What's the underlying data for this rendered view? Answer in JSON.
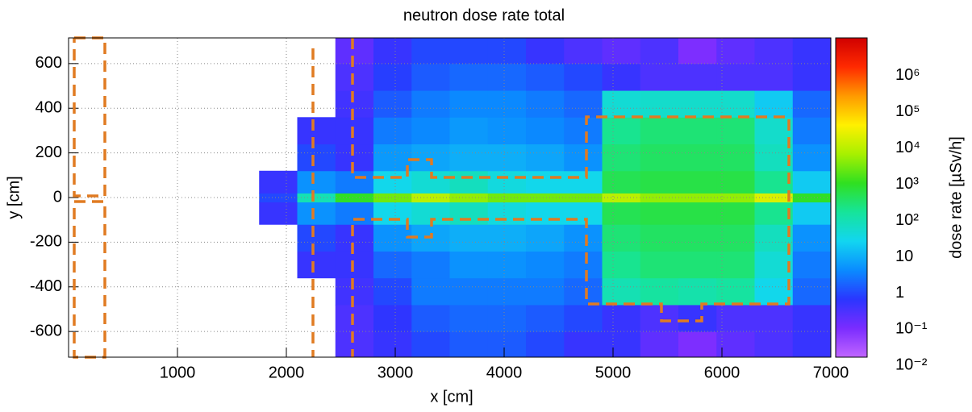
{
  "chart_data": {
    "type": "heatmap",
    "title": "neutron dose rate total",
    "x_label": "x [cm]",
    "y_label": "y [cm]",
    "colorbar_label": "dose rate [µSv/h]",
    "xlim": [
      0,
      7000
    ],
    "ylim": [
      -715,
      715
    ],
    "xticks": [
      1000,
      2000,
      3000,
      4000,
      5000,
      6000,
      7000
    ],
    "yticks": [
      -600,
      -400,
      -200,
      0,
      200,
      400,
      600
    ],
    "grid": true,
    "zscale": "log",
    "zlim": [
      0.017,
      11000000
    ],
    "zticks": [
      {
        "value": 0.01,
        "label": "10⁻²"
      },
      {
        "value": 0.1,
        "label": "10⁻¹"
      },
      1,
      10,
      {
        "value": 100,
        "label": "10²"
      },
      {
        "value": 1000,
        "label": "10³"
      },
      {
        "value": 10000,
        "label": "10⁴"
      },
      {
        "value": 100000,
        "label": "10⁵"
      },
      {
        "value": 1000000,
        "label": "10⁶"
      }
    ],
    "palette": [
      "#c065ff",
      "#7a2cff",
      "#2a36ff",
      "#0a8cff",
      "#12d6f0",
      "#16e49a",
      "#30e020",
      "#a8f000",
      "#fff000",
      "#ff9a00",
      "#ff2a00",
      "#d00000"
    ],
    "xbins": [
      0,
      350,
      700,
      1050,
      1400,
      1750,
      2100,
      2450,
      2800,
      3150,
      3500,
      3850,
      4200,
      4550,
      4900,
      5250,
      5600,
      5950,
      6300,
      6650,
      7000
    ],
    "ybins": [
      -715,
      -600,
      -480,
      -360,
      -240,
      -120,
      -20,
      20,
      120,
      240,
      360,
      480,
      600,
      715
    ],
    "z": [
      [
        null,
        null,
        null,
        null,
        null,
        null,
        null,
        0.3,
        0.5,
        1,
        1.5,
        1.5,
        1,
        0.5,
        0.5,
        0.2,
        0.1,
        0.2,
        0.3,
        0.5
      ],
      [
        null,
        null,
        null,
        null,
        null,
        null,
        null,
        0.3,
        0.6,
        1.5,
        2,
        2,
        1.5,
        1,
        0.5,
        0.3,
        0.5,
        0.3,
        0.3,
        0.5
      ],
      [
        null,
        null,
        null,
        null,
        null,
        null,
        null,
        0.4,
        1,
        3,
        3,
        3,
        3,
        2,
        100,
        150,
        120,
        150,
        30,
        2
      ],
      [
        null,
        null,
        null,
        null,
        null,
        null,
        0.5,
        0.5,
        2,
        3,
        5,
        5,
        4,
        3,
        200,
        300,
        300,
        300,
        50,
        3
      ],
      [
        null,
        null,
        null,
        null,
        null,
        null,
        1,
        0.5,
        5,
        8,
        10,
        10,
        8,
        5,
        300,
        400,
        400,
        400,
        80,
        5
      ],
      [
        null,
        null,
        null,
        null,
        null,
        0.5,
        5,
        3,
        30,
        50,
        80,
        40,
        30,
        30,
        500,
        600,
        600,
        600,
        200,
        20
      ],
      [
        null,
        null,
        null,
        null,
        null,
        1,
        100,
        1000,
        3000,
        10000,
        5000,
        3000,
        3000,
        3000,
        10000,
        5000,
        5000,
        5000,
        20000,
        1000
      ],
      [
        null,
        null,
        null,
        null,
        null,
        0.5,
        5,
        3,
        30,
        50,
        80,
        40,
        30,
        30,
        500,
        600,
        600,
        600,
        200,
        20
      ],
      [
        null,
        null,
        null,
        null,
        null,
        null,
        1,
        0.5,
        6,
        8,
        10,
        10,
        8,
        5,
        300,
        400,
        400,
        400,
        80,
        5
      ],
      [
        null,
        null,
        null,
        null,
        null,
        null,
        0.5,
        0.5,
        3,
        4,
        6,
        5,
        4,
        3,
        200,
        300,
        300,
        300,
        60,
        3
      ],
      [
        null,
        null,
        null,
        null,
        null,
        null,
        null,
        0.4,
        1.5,
        3,
        4,
        4,
        3,
        2,
        50,
        60,
        60,
        60,
        20,
        2
      ],
      [
        null,
        null,
        null,
        null,
        null,
        null,
        null,
        0.3,
        0.8,
        1.5,
        2,
        2,
        1.5,
        1,
        0.5,
        0.3,
        0.3,
        0.3,
        0.3,
        0.5
      ],
      [
        null,
        null,
        null,
        null,
        null,
        null,
        null,
        0.2,
        0.5,
        1,
        1,
        1,
        0.5,
        0.3,
        0.2,
        0.3,
        0.1,
        0.2,
        0.3,
        0.5
      ]
    ]
  }
}
